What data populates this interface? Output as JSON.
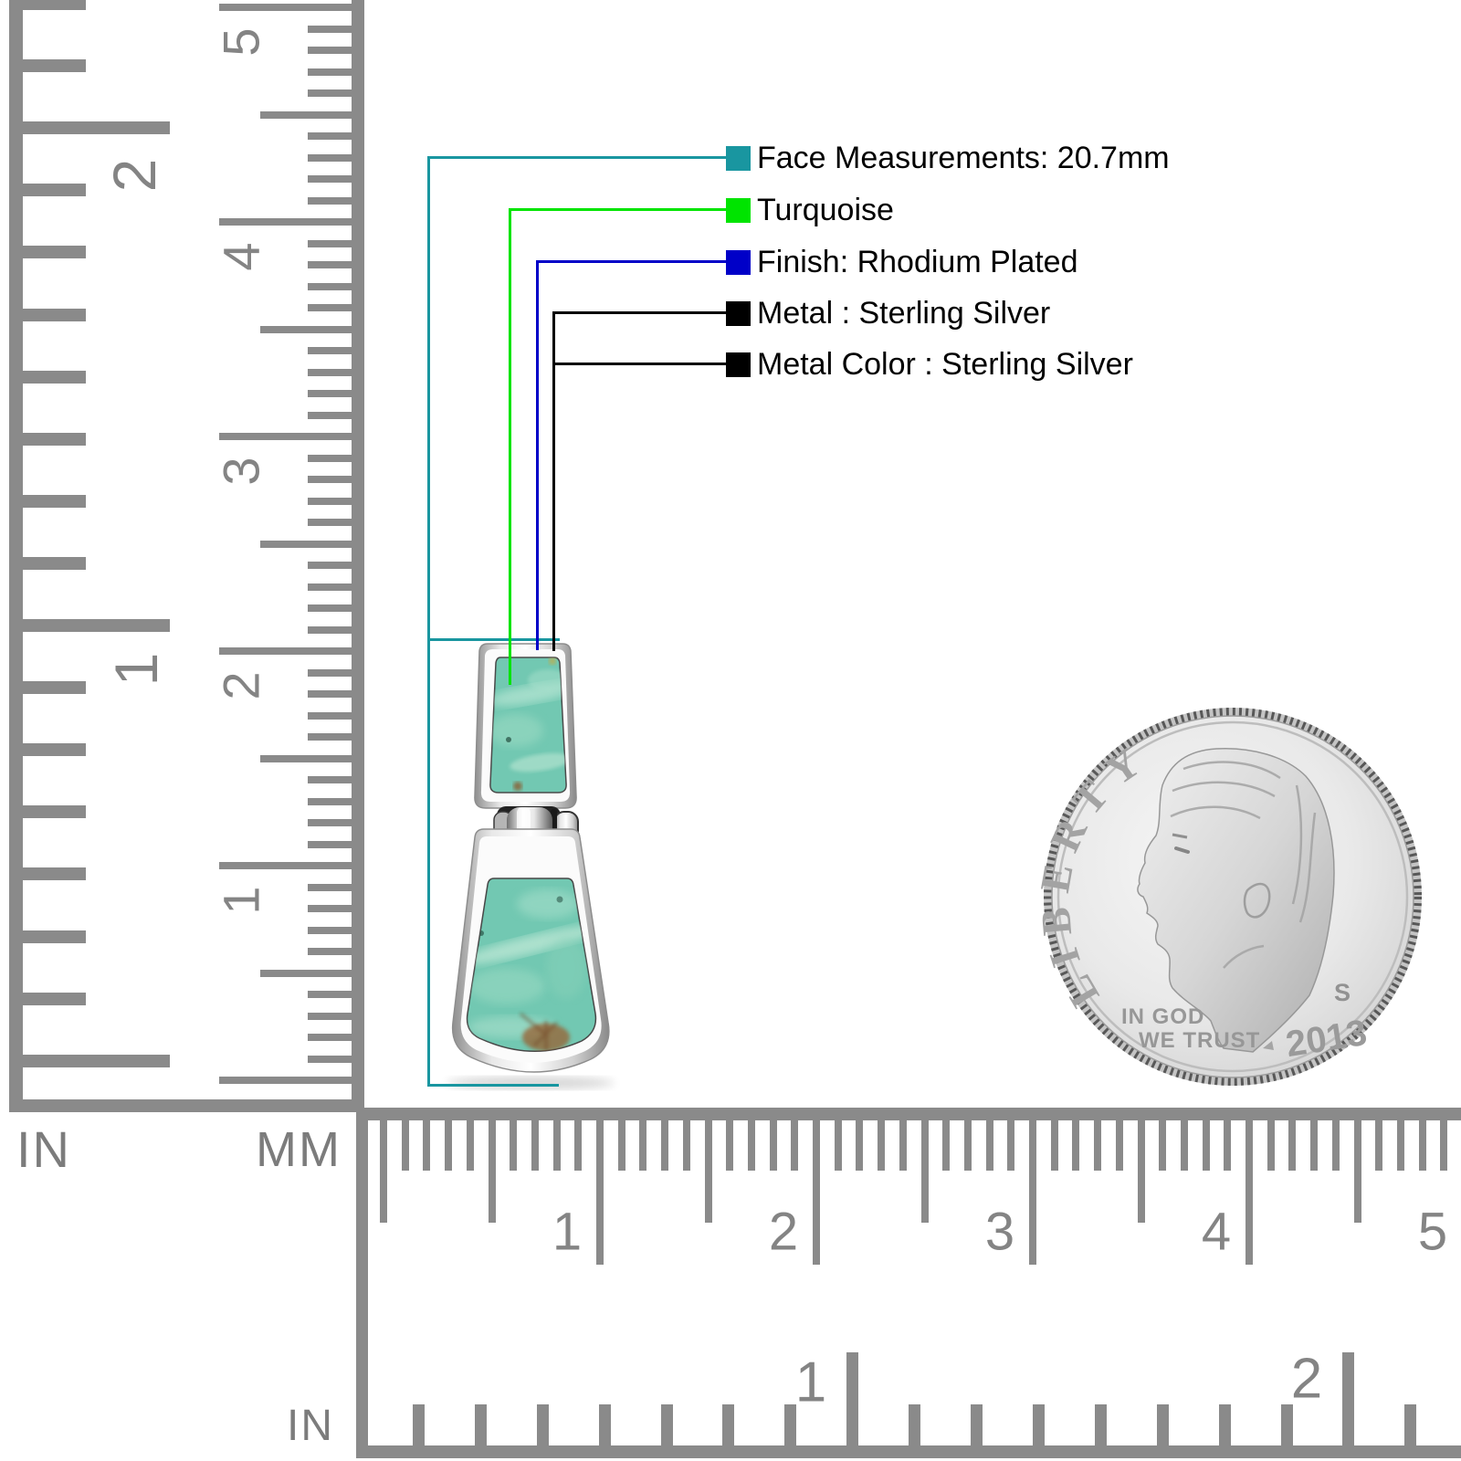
{
  "annotations": {
    "items": [
      {
        "label": "Face Measurements: 20.7mm",
        "color": "#1996A0"
      },
      {
        "label": "Turquoise",
        "color": "#00E400"
      },
      {
        "label": "Finish: Rhodium Plated",
        "color": "#0000C8"
      },
      {
        "label": "Metal : Sterling Silver",
        "color": "#000000"
      },
      {
        "label": "Metal Color : Sterling Silver",
        "color": "#000000"
      }
    ]
  },
  "rulers": {
    "vertical_inch": {
      "unit": "IN",
      "numbers": [
        "2",
        "1"
      ]
    },
    "vertical_mm": {
      "unit": "MM",
      "numbers": [
        "5",
        "4",
        "3",
        "2",
        "1"
      ]
    },
    "bottom_mm": {
      "numbers": [
        "1",
        "2",
        "3",
        "4",
        "5"
      ]
    },
    "bottom_inch": {
      "unit": "IN",
      "numbers": [
        "1",
        "2"
      ]
    },
    "tick_color": "#8a8a8a",
    "number_color": "#848484"
  },
  "coin": {
    "legend": "LIBERTY",
    "motto_line1": "IN GOD",
    "motto_line2": "WE TRUST",
    "mint_mark": "S",
    "year": "2013"
  },
  "pendant": {
    "gemstone_color": "#72C8B2",
    "metal_color": "#D8D8D8"
  }
}
